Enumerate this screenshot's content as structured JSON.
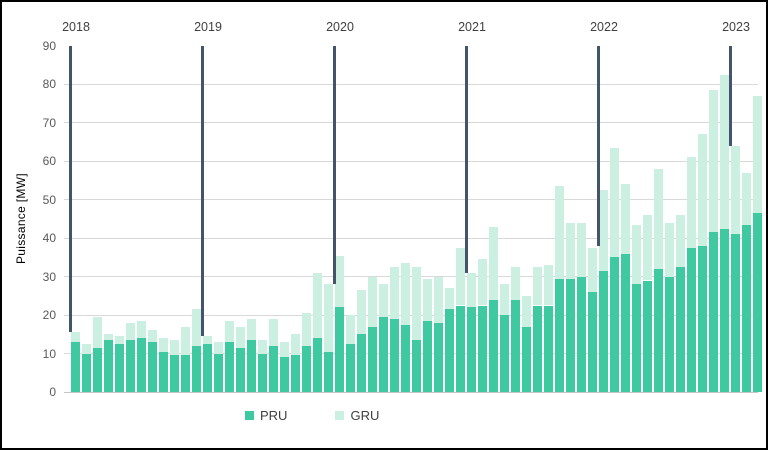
{
  "chart_data": {
    "type": "bar",
    "stacked": true,
    "title": "",
    "xlabel": "",
    "ylabel": "Puissance [MW]",
    "ylim": [
      0,
      90
    ],
    "yticks": [
      0,
      10,
      20,
      30,
      40,
      50,
      60,
      70,
      80,
      90
    ],
    "gridlines": [
      10,
      20,
      30,
      40,
      50,
      60,
      70,
      80
    ],
    "legend_position": "bottom",
    "categories": [
      "2018-01",
      "2018-02",
      "2018-03",
      "2018-04",
      "2018-05",
      "2018-06",
      "2018-07",
      "2018-08",
      "2018-09",
      "2018-10",
      "2018-11",
      "2018-12",
      "2019-01",
      "2019-02",
      "2019-03",
      "2019-04",
      "2019-05",
      "2019-06",
      "2019-07",
      "2019-08",
      "2019-09",
      "2019-10",
      "2019-11",
      "2019-12",
      "2020-01",
      "2020-02",
      "2020-03",
      "2020-04",
      "2020-05",
      "2020-06",
      "2020-07",
      "2020-08",
      "2020-09",
      "2020-10",
      "2020-11",
      "2020-12",
      "2021-01",
      "2021-02",
      "2021-03",
      "2021-04",
      "2021-05",
      "2021-06",
      "2021-07",
      "2021-08",
      "2021-09",
      "2021-10",
      "2021-11",
      "2021-12",
      "2022-01",
      "2022-02",
      "2022-03",
      "2022-04",
      "2022-05",
      "2022-06",
      "2022-07",
      "2022-08",
      "2022-09",
      "2022-10",
      "2022-11",
      "2022-12",
      "2023-01",
      "2023-02",
      "2023-03"
    ],
    "series": [
      {
        "name": "PRU",
        "color": "#3EC9A1",
        "values": [
          13,
          10,
          11.5,
          13.5,
          12.5,
          13.5,
          14,
          13,
          10.5,
          9.5,
          9.5,
          12,
          12.5,
          10,
          13,
          11.5,
          13.5,
          10,
          12,
          9,
          9.5,
          12,
          14,
          10.5,
          22,
          12.5,
          15,
          17,
          19.5,
          19,
          17.5,
          13.5,
          18.5,
          18,
          21.5,
          22.5,
          22,
          22.5,
          24,
          20,
          24,
          17,
          22.5,
          22.5,
          29.5,
          29.5,
          30,
          26,
          31.5,
          35,
          36,
          28,
          29,
          32,
          30,
          32.5,
          37.5,
          38,
          41.5,
          42.5,
          41,
          43.5,
          46.5
        ]
      },
      {
        "name": "GRU",
        "color": "#CBEFE1",
        "values": [
          2.5,
          2.5,
          8,
          1.5,
          2,
          4.5,
          4.5,
          3,
          3.5,
          4,
          7.5,
          9.5,
          2,
          3,
          5.5,
          5.5,
          5.5,
          3.5,
          7,
          4,
          5.5,
          8.5,
          17,
          17.5,
          13.5,
          7.5,
          11.5,
          13,
          8.5,
          13.5,
          16,
          19,
          11,
          12,
          5.5,
          15,
          9,
          12,
          19,
          8,
          8.5,
          8,
          10,
          10.5,
          24,
          14.5,
          14,
          11.5,
          21,
          28.5,
          18,
          15.5,
          17,
          26,
          14,
          13.5,
          23.5,
          29,
          37,
          40,
          23,
          13.5,
          30.5
        ]
      }
    ],
    "year_markers": [
      {
        "label": "2018",
        "month_index": 0,
        "line_end_value": 15.5
      },
      {
        "label": "2019",
        "month_index": 12,
        "line_end_value": 14.5
      },
      {
        "label": "2020",
        "month_index": 24,
        "line_end_value": 28
      },
      {
        "label": "2021",
        "month_index": 36,
        "line_end_value": 31
      },
      {
        "label": "2022",
        "month_index": 48,
        "line_end_value": 38
      },
      {
        "label": "2023",
        "month_index": 60,
        "line_end_value": 64
      }
    ]
  },
  "colors": {
    "pru": "#3EC9A1",
    "gru": "#CBEFE1",
    "year_line": "#44546A",
    "gridline": "#D9D9D9",
    "baseline": "#C6C6C6",
    "tick_text": "#595959",
    "year_text": "#404040",
    "legend_text": "#404040",
    "background": "#FFFFFF",
    "border": "#000000"
  }
}
